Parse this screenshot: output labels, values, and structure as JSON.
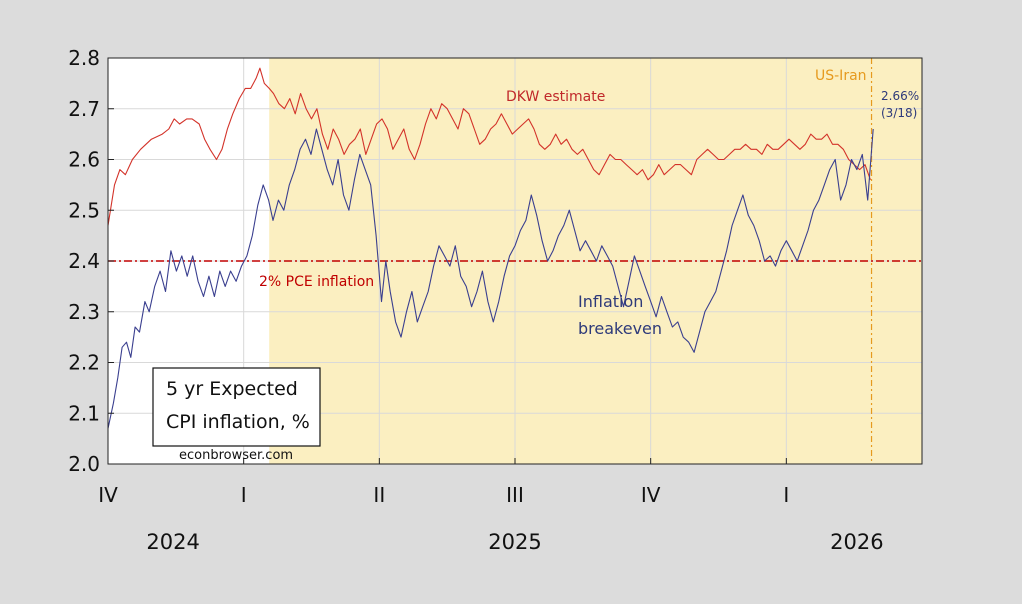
{
  "chart_data": {
    "type": "line",
    "title": "5 yr Expected CPI inflation, %",
    "title_lines": [
      "5 yr Expected",
      "CPI inflation, %"
    ],
    "source": "econbrowser.com",
    "ylim": [
      2.0,
      2.8
    ],
    "yticks": [
      "2.0",
      "2.1",
      "2.2",
      "2.3",
      "2.4",
      "2.5",
      "2.6",
      "2.7",
      "2.8"
    ],
    "xlim": [
      2024.75,
      2026.25
    ],
    "quarter_ticks": [
      {
        "label": "IV",
        "x": 2024.75
      },
      {
        "label": "I",
        "x": 2025.0
      },
      {
        "label": "II",
        "x": 2025.25
      },
      {
        "label": "III",
        "x": 2025.5
      },
      {
        "label": "IV",
        "x": 2025.75
      },
      {
        "label": "I",
        "x": 2026.0
      }
    ],
    "year_labels": [
      {
        "label": "2024",
        "x": 2024.87
      },
      {
        "label": "2025",
        "x": 2025.5
      },
      {
        "label": "2026",
        "x": 2026.13
      }
    ],
    "shaded_region": {
      "from": 2025.047,
      "to": 2026.25,
      "color": "#fbefc1"
    },
    "reference_line": {
      "value": 2.4,
      "label": "2% PCE inflation",
      "color": "#c00000"
    },
    "event_line": {
      "x": 2026.157,
      "label": "US-Iran",
      "color": "#e69a1e"
    },
    "end_annotation": {
      "value": "2.66%",
      "date": "(3/18)"
    },
    "series": [
      {
        "name": "DKW estimate",
        "label": "DKW estimate",
        "color": "#d3332a",
        "points": [
          [
            2024.75,
            2.47
          ],
          [
            2024.762,
            2.55
          ],
          [
            2024.772,
            2.58
          ],
          [
            2024.782,
            2.57
          ],
          [
            2024.795,
            2.6
          ],
          [
            2024.81,
            2.62
          ],
          [
            2024.83,
            2.64
          ],
          [
            2024.85,
            2.65
          ],
          [
            2024.862,
            2.66
          ],
          [
            2024.872,
            2.68
          ],
          [
            2024.882,
            2.67
          ],
          [
            2024.895,
            2.68
          ],
          [
            2024.905,
            2.68
          ],
          [
            2024.918,
            2.67
          ],
          [
            2024.928,
            2.64
          ],
          [
            2024.938,
            2.62
          ],
          [
            2024.95,
            2.6
          ],
          [
            2024.96,
            2.62
          ],
          [
            2024.97,
            2.66
          ],
          [
            2024.98,
            2.69
          ],
          [
            2024.992,
            2.72
          ],
          [
            2025.003,
            2.74
          ],
          [
            2025.013,
            2.74
          ],
          [
            2025.023,
            2.76
          ],
          [
            2025.03,
            2.78
          ],
          [
            2025.038,
            2.75
          ],
          [
            2025.047,
            2.74
          ],
          [
            2025.055,
            2.73
          ],
          [
            2025.065,
            2.71
          ],
          [
            2025.075,
            2.7
          ],
          [
            2025.085,
            2.72
          ],
          [
            2025.095,
            2.69
          ],
          [
            2025.105,
            2.73
          ],
          [
            2025.115,
            2.7
          ],
          [
            2025.125,
            2.68
          ],
          [
            2025.135,
            2.7
          ],
          [
            2025.145,
            2.65
          ],
          [
            2025.155,
            2.62
          ],
          [
            2025.165,
            2.66
          ],
          [
            2025.175,
            2.64
          ],
          [
            2025.185,
            2.61
          ],
          [
            2025.195,
            2.63
          ],
          [
            2025.205,
            2.64
          ],
          [
            2025.215,
            2.66
          ],
          [
            2025.225,
            2.61
          ],
          [
            2025.235,
            2.64
          ],
          [
            2025.245,
            2.67
          ],
          [
            2025.255,
            2.68
          ],
          [
            2025.265,
            2.66
          ],
          [
            2025.275,
            2.62
          ],
          [
            2025.285,
            2.64
          ],
          [
            2025.295,
            2.66
          ],
          [
            2025.305,
            2.62
          ],
          [
            2025.315,
            2.6
          ],
          [
            2025.325,
            2.63
          ],
          [
            2025.335,
            2.67
          ],
          [
            2025.345,
            2.7
          ],
          [
            2025.355,
            2.68
          ],
          [
            2025.365,
            2.71
          ],
          [
            2025.375,
            2.7
          ],
          [
            2025.385,
            2.68
          ],
          [
            2025.395,
            2.66
          ],
          [
            2025.405,
            2.7
          ],
          [
            2025.415,
            2.69
          ],
          [
            2025.425,
            2.66
          ],
          [
            2025.435,
            2.63
          ],
          [
            2025.445,
            2.64
          ],
          [
            2025.455,
            2.66
          ],
          [
            2025.465,
            2.67
          ],
          [
            2025.475,
            2.69
          ],
          [
            2025.485,
            2.67
          ],
          [
            2025.495,
            2.65
          ],
          [
            2025.505,
            2.66
          ],
          [
            2025.515,
            2.67
          ],
          [
            2025.525,
            2.68
          ],
          [
            2025.535,
            2.66
          ],
          [
            2025.545,
            2.63
          ],
          [
            2025.555,
            2.62
          ],
          [
            2025.565,
            2.63
          ],
          [
            2025.575,
            2.65
          ],
          [
            2025.585,
            2.63
          ],
          [
            2025.595,
            2.64
          ],
          [
            2025.605,
            2.62
          ],
          [
            2025.615,
            2.61
          ],
          [
            2025.625,
            2.62
          ],
          [
            2025.635,
            2.6
          ],
          [
            2025.645,
            2.58
          ],
          [
            2025.655,
            2.57
          ],
          [
            2025.665,
            2.59
          ],
          [
            2025.675,
            2.61
          ],
          [
            2025.685,
            2.6
          ],
          [
            2025.695,
            2.6
          ],
          [
            2025.705,
            2.59
          ],
          [
            2025.715,
            2.58
          ],
          [
            2025.725,
            2.57
          ],
          [
            2025.735,
            2.58
          ],
          [
            2025.745,
            2.56
          ],
          [
            2025.755,
            2.57
          ],
          [
            2025.765,
            2.59
          ],
          [
            2025.775,
            2.57
          ],
          [
            2025.785,
            2.58
          ],
          [
            2025.795,
            2.59
          ],
          [
            2025.805,
            2.59
          ],
          [
            2025.815,
            2.58
          ],
          [
            2025.825,
            2.57
          ],
          [
            2025.835,
            2.6
          ],
          [
            2025.845,
            2.61
          ],
          [
            2025.855,
            2.62
          ],
          [
            2025.865,
            2.61
          ],
          [
            2025.875,
            2.6
          ],
          [
            2025.885,
            2.6
          ],
          [
            2025.895,
            2.61
          ],
          [
            2025.905,
            2.62
          ],
          [
            2025.915,
            2.62
          ],
          [
            2025.925,
            2.63
          ],
          [
            2025.935,
            2.62
          ],
          [
            2025.945,
            2.62
          ],
          [
            2025.955,
            2.61
          ],
          [
            2025.965,
            2.63
          ],
          [
            2025.975,
            2.62
          ],
          [
            2025.985,
            2.62
          ],
          [
            2025.995,
            2.63
          ],
          [
            2026.005,
            2.64
          ],
          [
            2026.015,
            2.63
          ],
          [
            2026.025,
            2.62
          ],
          [
            2026.035,
            2.63
          ],
          [
            2026.045,
            2.65
          ],
          [
            2026.055,
            2.64
          ],
          [
            2026.065,
            2.64
          ],
          [
            2026.075,
            2.65
          ],
          [
            2026.085,
            2.63
          ],
          [
            2026.095,
            2.63
          ],
          [
            2026.105,
            2.62
          ],
          [
            2026.115,
            2.6
          ],
          [
            2026.125,
            2.59
          ],
          [
            2026.135,
            2.58
          ],
          [
            2026.145,
            2.59
          ],
          [
            2026.155,
            2.56
          ]
        ]
      },
      {
        "name": "Inflation breakeven",
        "label_lines": [
          "Inflation",
          "breakeven"
        ],
        "color": "#3a3f8f",
        "points": [
          [
            2024.75,
            2.07
          ],
          [
            2024.76,
            2.12
          ],
          [
            2024.768,
            2.17
          ],
          [
            2024.776,
            2.23
          ],
          [
            2024.784,
            2.24
          ],
          [
            2024.792,
            2.21
          ],
          [
            2024.8,
            2.27
          ],
          [
            2024.808,
            2.26
          ],
          [
            2024.818,
            2.32
          ],
          [
            2024.826,
            2.3
          ],
          [
            2024.836,
            2.35
          ],
          [
            2024.846,
            2.38
          ],
          [
            2024.856,
            2.34
          ],
          [
            2024.866,
            2.42
          ],
          [
            2024.876,
            2.38
          ],
          [
            2024.886,
            2.41
          ],
          [
            2024.896,
            2.37
          ],
          [
            2024.906,
            2.41
          ],
          [
            2024.916,
            2.36
          ],
          [
            2024.926,
            2.33
          ],
          [
            2024.936,
            2.37
          ],
          [
            2024.946,
            2.33
          ],
          [
            2024.956,
            2.38
          ],
          [
            2024.966,
            2.35
          ],
          [
            2024.976,
            2.38
          ],
          [
            2024.986,
            2.36
          ],
          [
            2024.996,
            2.39
          ],
          [
            2025.006,
            2.41
          ],
          [
            2025.016,
            2.45
          ],
          [
            2025.026,
            2.51
          ],
          [
            2025.036,
            2.55
          ],
          [
            2025.046,
            2.52
          ],
          [
            2025.054,
            2.48
          ],
          [
            2025.064,
            2.52
          ],
          [
            2025.074,
            2.5
          ],
          [
            2025.084,
            2.55
          ],
          [
            2025.094,
            2.58
          ],
          [
            2025.104,
            2.62
          ],
          [
            2025.114,
            2.64
          ],
          [
            2025.124,
            2.61
          ],
          [
            2025.134,
            2.66
          ],
          [
            2025.144,
            2.62
          ],
          [
            2025.154,
            2.58
          ],
          [
            2025.164,
            2.55
          ],
          [
            2025.174,
            2.6
          ],
          [
            2025.184,
            2.53
          ],
          [
            2025.194,
            2.5
          ],
          [
            2025.204,
            2.56
          ],
          [
            2025.214,
            2.61
          ],
          [
            2025.224,
            2.58
          ],
          [
            2025.234,
            2.55
          ],
          [
            2025.244,
            2.45
          ],
          [
            2025.254,
            2.32
          ],
          [
            2025.262,
            2.4
          ],
          [
            2025.27,
            2.34
          ],
          [
            2025.28,
            2.28
          ],
          [
            2025.29,
            2.25
          ],
          [
            2025.3,
            2.3
          ],
          [
            2025.31,
            2.34
          ],
          [
            2025.32,
            2.28
          ],
          [
            2025.33,
            2.31
          ],
          [
            2025.34,
            2.34
          ],
          [
            2025.35,
            2.39
          ],
          [
            2025.36,
            2.43
          ],
          [
            2025.37,
            2.41
          ],
          [
            2025.38,
            2.39
          ],
          [
            2025.39,
            2.43
          ],
          [
            2025.4,
            2.37
          ],
          [
            2025.41,
            2.35
          ],
          [
            2025.42,
            2.31
          ],
          [
            2025.43,
            2.34
          ],
          [
            2025.44,
            2.38
          ],
          [
            2025.45,
            2.32
          ],
          [
            2025.46,
            2.28
          ],
          [
            2025.47,
            2.32
          ],
          [
            2025.48,
            2.37
          ],
          [
            2025.49,
            2.41
          ],
          [
            2025.5,
            2.43
          ],
          [
            2025.51,
            2.46
          ],
          [
            2025.52,
            2.48
          ],
          [
            2025.53,
            2.53
          ],
          [
            2025.54,
            2.49
          ],
          [
            2025.55,
            2.44
          ],
          [
            2025.56,
            2.4
          ],
          [
            2025.57,
            2.42
          ],
          [
            2025.58,
            2.45
          ],
          [
            2025.59,
            2.47
          ],
          [
            2025.6,
            2.5
          ],
          [
            2025.61,
            2.46
          ],
          [
            2025.62,
            2.42
          ],
          [
            2025.63,
            2.44
          ],
          [
            2025.64,
            2.42
          ],
          [
            2025.65,
            2.4
          ],
          [
            2025.66,
            2.43
          ],
          [
            2025.67,
            2.41
          ],
          [
            2025.68,
            2.39
          ],
          [
            2025.69,
            2.35
          ],
          [
            2025.7,
            2.31
          ],
          [
            2025.71,
            2.36
          ],
          [
            2025.72,
            2.41
          ],
          [
            2025.73,
            2.38
          ],
          [
            2025.74,
            2.35
          ],
          [
            2025.75,
            2.32
          ],
          [
            2025.76,
            2.29
          ],
          [
            2025.77,
            2.33
          ],
          [
            2025.78,
            2.3
          ],
          [
            2025.79,
            2.27
          ],
          [
            2025.8,
            2.28
          ],
          [
            2025.81,
            2.25
          ],
          [
            2025.82,
            2.24
          ],
          [
            2025.83,
            2.22
          ],
          [
            2025.84,
            2.26
          ],
          [
            2025.85,
            2.3
          ],
          [
            2025.86,
            2.32
          ],
          [
            2025.87,
            2.34
          ],
          [
            2025.88,
            2.38
          ],
          [
            2025.89,
            2.42
          ],
          [
            2025.9,
            2.47
          ],
          [
            2025.91,
            2.5
          ],
          [
            2025.92,
            2.53
          ],
          [
            2025.93,
            2.49
          ],
          [
            2025.94,
            2.47
          ],
          [
            2025.95,
            2.44
          ],
          [
            2025.96,
            2.4
          ],
          [
            2025.97,
            2.41
          ],
          [
            2025.98,
            2.39
          ],
          [
            2025.99,
            2.42
          ],
          [
            2026.0,
            2.44
          ],
          [
            2026.01,
            2.42
          ],
          [
            2026.02,
            2.4
          ],
          [
            2026.03,
            2.43
          ],
          [
            2026.04,
            2.46
          ],
          [
            2026.05,
            2.5
          ],
          [
            2026.06,
            2.52
          ],
          [
            2026.07,
            2.55
          ],
          [
            2026.08,
            2.58
          ],
          [
            2026.09,
            2.6
          ],
          [
            2026.1,
            2.52
          ],
          [
            2026.11,
            2.55
          ],
          [
            2026.12,
            2.6
          ],
          [
            2026.13,
            2.58
          ],
          [
            2026.14,
            2.61
          ],
          [
            2026.15,
            2.52
          ],
          [
            2026.16,
            2.66
          ]
        ]
      }
    ]
  }
}
